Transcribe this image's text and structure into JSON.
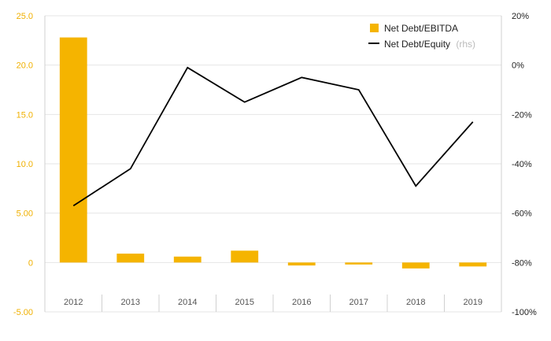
{
  "chart_data": {
    "type": "bar",
    "categories": [
      "2012",
      "2013",
      "2014",
      "2015",
      "2016",
      "2017",
      "2018",
      "2019"
    ],
    "series": [
      {
        "name": "Net Debt/EBITDA",
        "type": "bar",
        "axis": "left",
        "color": "#f5b400",
        "values": [
          22.8,
          0.9,
          0.6,
          1.2,
          -0.3,
          -0.2,
          -0.6,
          -0.4
        ]
      },
      {
        "name": "Net Debt/Equity",
        "name_suffix": "(rhs)",
        "type": "line",
        "axis": "right",
        "color": "#000000",
        "values": [
          -57,
          -42,
          -1,
          -15,
          -5,
          -10,
          -49,
          -23
        ]
      }
    ],
    "y_left": {
      "ylim": [
        -5,
        25
      ],
      "tick_values": [
        25,
        20,
        15,
        10,
        5,
        0,
        -5
      ],
      "tick_labels": [
        "25.0",
        "20.0",
        "15.0",
        "10.0",
        "5.00",
        "0",
        "-5.00"
      ]
    },
    "y_right": {
      "ylim": [
        -100,
        20
      ],
      "tick_values": [
        20,
        0,
        -20,
        -40,
        -60,
        -80,
        -100
      ],
      "tick_labels": [
        "20%",
        "0%",
        "-20%",
        "-40%",
        "-60%",
        "-80%",
        "-100%"
      ]
    },
    "grid": true,
    "legend": "top-right"
  }
}
